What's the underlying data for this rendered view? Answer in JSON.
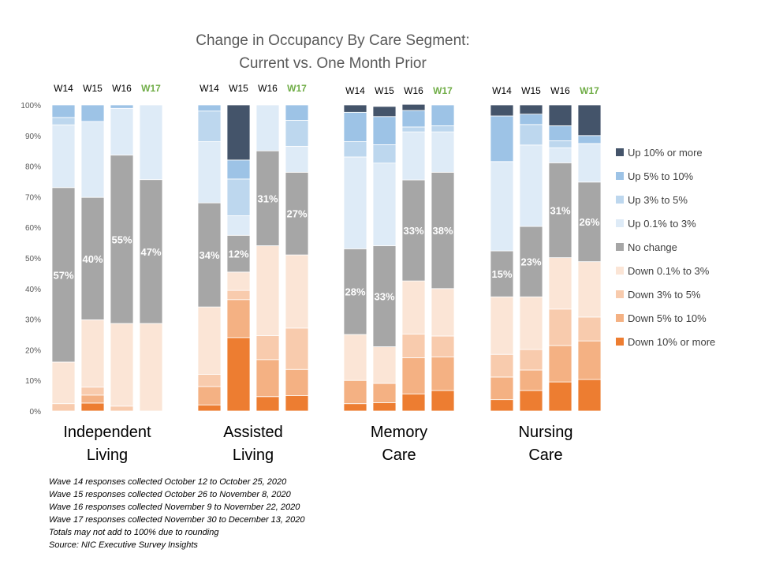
{
  "chart_data": {
    "type": "bar",
    "stacked": true,
    "normalized": true,
    "title_lines": [
      "Change in Occupancy By Care Segment:",
      "Current vs. One Month Prior"
    ],
    "ylim": [
      0,
      100
    ],
    "y_ticks": [
      "0%",
      "10%",
      "20%",
      "30%",
      "40%",
      "50%",
      "60%",
      "70%",
      "80%",
      "90%",
      "100%"
    ],
    "grid": false,
    "legend_position": "right",
    "waves": [
      "W14",
      "W15",
      "W16",
      "W17"
    ],
    "wave_colors": [
      "#000000",
      "#000000",
      "#000000",
      "#70AD47"
    ],
    "series": [
      {
        "name": "Down 10% or more",
        "color": "#ED7D31"
      },
      {
        "name": "Down 5% to 10%",
        "color": "#F4B183"
      },
      {
        "name": "Down 3% to 5%",
        "color": "#F8CBAD"
      },
      {
        "name": "Down 0.1% to 3%",
        "color": "#FBE5D6"
      },
      {
        "name": "No change",
        "color": "#A6A6A6"
      },
      {
        "name": "Up 0.1% to 3%",
        "color": "#DEEBF7"
      },
      {
        "name": "Up 3% to 5%",
        "color": "#BDD7EE"
      },
      {
        "name": "Up 5% to 10%",
        "color": "#9DC3E6"
      },
      {
        "name": "Up 10% or more",
        "color": "#44546A"
      }
    ],
    "groups": [
      {
        "name_lines": [
          "Independent",
          "Living"
        ],
        "bars": [
          {
            "wave": "W14",
            "values": [
              0,
              0,
              2.4,
              13.6,
              57,
              20.5,
              2.4,
              4.1,
              0
            ],
            "label": "57%"
          },
          {
            "wave": "W15",
            "values": [
              2.6,
              2.6,
              2.6,
              22,
              40,
              24.8,
              0,
              5.4,
              0
            ],
            "label": "40%"
          },
          {
            "wave": "W16",
            "values": [
              0,
              0,
              1.6,
              27,
              55,
              15.3,
              0,
              1.1,
              0
            ],
            "label": "55%"
          },
          {
            "wave": "W17",
            "values": [
              0,
              0,
              0,
              28.6,
              47,
              24.4,
              0,
              0,
              0
            ],
            "label": "47%"
          }
        ]
      },
      {
        "name_lines": [
          "Assisted",
          "Living"
        ],
        "bars": [
          {
            "wave": "W14",
            "values": [
              2,
              6,
              4,
              22,
              34,
              20,
              10,
              2,
              0
            ],
            "label": "34%"
          },
          {
            "wave": "W15",
            "values": [
              24,
              12.4,
              3,
              6,
              12,
              6.4,
              12,
              6.2,
              18
            ],
            "label": "12%"
          },
          {
            "wave": "W16",
            "values": [
              4.7,
              12.1,
              7.8,
              29.4,
              31,
              15,
              0,
              0,
              0
            ],
            "label": "31%"
          },
          {
            "wave": "W17",
            "values": [
              5,
              8.6,
              13.5,
              23.9,
              27,
              8.5,
              8.5,
              5,
              0
            ],
            "label": "27%"
          }
        ]
      },
      {
        "name_lines": [
          "Memory",
          "Care"
        ],
        "bars": [
          {
            "wave": "W14",
            "values": [
              2.4,
              7.6,
              0,
              15,
              28,
              30,
              5,
              9.6,
              2.4
            ],
            "label": "28%"
          },
          {
            "wave": "W15",
            "values": [
              2.7,
              6.3,
              0,
              12,
              33,
              27,
              6,
              9.2,
              3.3
            ],
            "label": "33%"
          },
          {
            "wave": "W16",
            "values": [
              5.6,
              11.8,
              7.7,
              17.4,
              33,
              15.7,
              1.6,
              5.4,
              2
            ],
            "label": "33%"
          },
          {
            "wave": "W17",
            "values": [
              6.7,
              11,
              6.8,
              15.5,
              38,
              13.2,
              2,
              6.8,
              0
            ],
            "label": "38%"
          }
        ]
      },
      {
        "name_lines": [
          "Nursing",
          "Care"
        ],
        "bars": [
          {
            "wave": "W14",
            "values": [
              3.7,
              7.4,
              7.4,
              18.8,
              15,
              29.2,
              0,
              14.9,
              3.6
            ],
            "label": "15%"
          },
          {
            "wave": "W15",
            "values": [
              6.7,
              6.7,
              6.7,
              17.2,
              23,
              26.6,
              6.7,
              3.4,
              3
            ],
            "label": "23%"
          },
          {
            "wave": "W16",
            "values": [
              9.5,
              11.9,
              11.9,
              16.8,
              31,
              4.9,
              2.3,
              4.9,
              6.8
            ],
            "label": "31%"
          },
          {
            "wave": "W17",
            "values": [
              10.3,
              12.6,
              7.8,
              18.1,
              26,
              12.6,
              0,
              2.6,
              10
            ],
            "label": "26%"
          }
        ]
      }
    ]
  },
  "notes": [
    "Wave 14 responses collected October 12 to October 25, 2020",
    "Wave 15 responses collected October 26 to November 8, 2020",
    "Wave 16 responses collected November 9 to November 22, 2020",
    "Wave 17 responses collected November 30 to December 13, 2020",
    "Totals may not add to 100% due to rounding",
    "Source: NIC Executive Survey Insights"
  ]
}
